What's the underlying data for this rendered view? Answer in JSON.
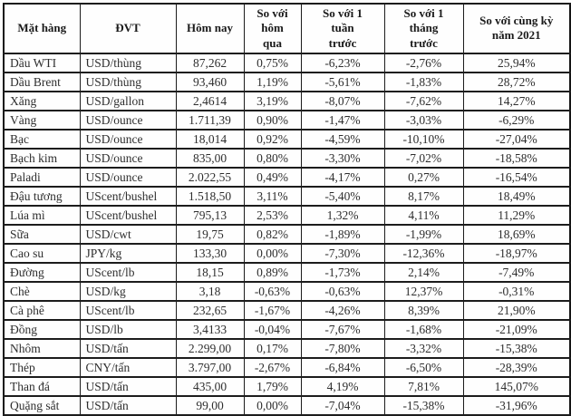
{
  "page": {
    "background": "#fdfdfd"
  },
  "table": {
    "description": "commodity-price-change-table",
    "border_color": "#1c1c1c",
    "header_text_color": "#1a1a1a",
    "body_text_color": "#2e2e2e",
    "columns": [
      {
        "label": "Mặt hàng"
      },
      {
        "label": "ĐVT"
      },
      {
        "label": "Hôm nay"
      },
      {
        "label": "So với\nhôm\nqua"
      },
      {
        "label": "So với 1\ntuần\ntrước"
      },
      {
        "label": "So với 1\ntháng\ntrước"
      },
      {
        "label": "So với cùng kỳ\nnăm 2021"
      }
    ],
    "rows": [
      [
        "Dầu WTI",
        "USD/thùng",
        "87,262",
        "0,75%",
        "-6,23%",
        "-2,76%",
        "25,94%"
      ],
      [
        "Dầu Brent",
        "USD/thùng",
        "93,460",
        "1,19%",
        "-5,61%",
        "-1,83%",
        "28,72%"
      ],
      [
        "Xăng",
        "USD/gallon",
        "2,4614",
        "3,19%",
        "-8,07%",
        "-7,62%",
        "14,27%"
      ],
      [
        "Vàng",
        "USD/ounce",
        "1.711,39",
        "0,90%",
        "-1,47%",
        "-3,03%",
        "-6,29%"
      ],
      [
        "Bạc",
        "USD/ounce",
        "18,014",
        "0,92%",
        "-4,59%",
        "-10,10%",
        "-27,04%"
      ],
      [
        "Bạch kim",
        "USD/ounce",
        "835,00",
        "0,80%",
        "-3,30%",
        "-7,02%",
        "-18,58%"
      ],
      [
        "Paladi",
        "USD/ounce",
        "2.022,55",
        "0,49%",
        "-4,17%",
        "0,27%",
        "-16,54%"
      ],
      [
        "Đậu tương",
        "UScent/bushel",
        "1.518,50",
        "3,11%",
        "-5,40%",
        "8,17%",
        "18,49%"
      ],
      [
        "Lúa mì",
        "UScent/bushel",
        "795,13",
        "2,53%",
        "1,32%",
        "4,11%",
        "11,29%"
      ],
      [
        "Sữa",
        "USD/cwt",
        "19,75",
        "0,82%",
        "-1,89%",
        "-1,99%",
        "18,69%"
      ],
      [
        "Cao su",
        "JPY/kg",
        "133,30",
        "0,00%",
        "-7,30%",
        "-12,36%",
        "-18,97%"
      ],
      [
        "Đường",
        "UScent/lb",
        "18,15",
        "0,89%",
        "-1,73%",
        "2,14%",
        "-7,49%"
      ],
      [
        "Chè",
        "USD/kg",
        "3,18",
        "-0,63%",
        "-0,63%",
        "12,37%",
        "-0,31%"
      ],
      [
        "Cà phê",
        "UScent/lb",
        "232,65",
        "-1,67%",
        "-4,26%",
        "8,39%",
        "21,90%"
      ],
      [
        "Đồng",
        "USD/lb",
        "3,4133",
        "-0,04%",
        "-7,67%",
        "-1,68%",
        "-21,09%"
      ],
      [
        "Nhôm",
        "USD/tấn",
        "2.299,00",
        "0,17%",
        "-7,80%",
        "-3,32%",
        "-15,38%"
      ],
      [
        "Thép",
        "CNY/tấn",
        "3.797,00",
        "-2,67%",
        "-6,84%",
        "-6,50%",
        "-28,39%"
      ],
      [
        "Than đá",
        "USD/tấn",
        "435,00",
        "1,79%",
        "4,19%",
        "7,81%",
        "145,07%"
      ],
      [
        "Quặng sắt",
        "USD/tấn",
        "99,00",
        "0,00%",
        "-7,04%",
        "-15,38%",
        "-31,96%"
      ]
    ]
  }
}
